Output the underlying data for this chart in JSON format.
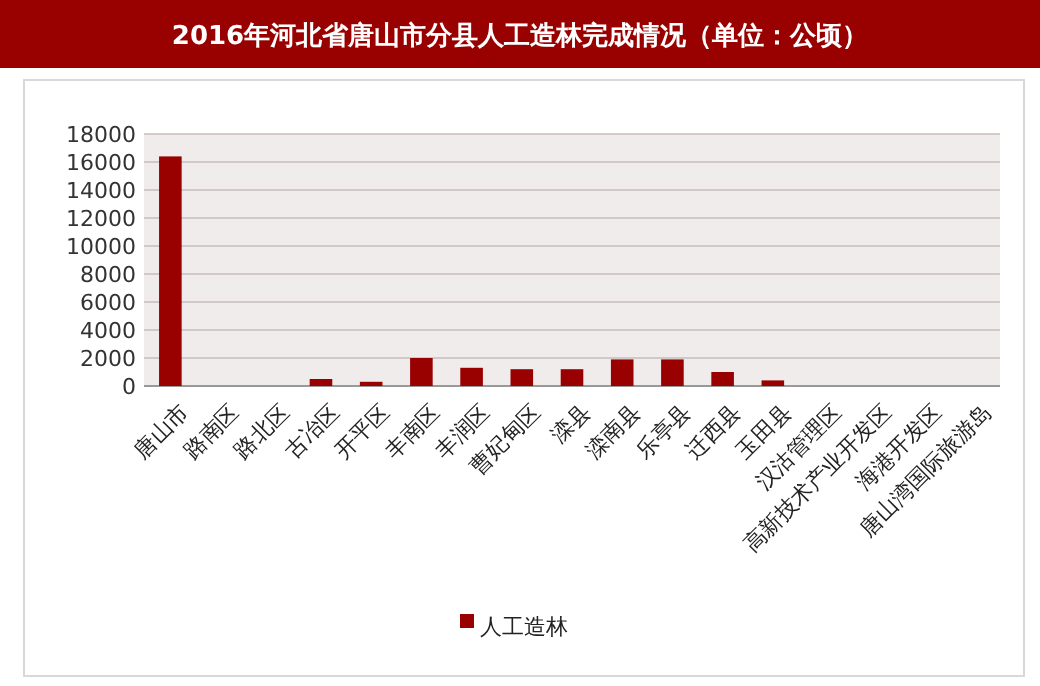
{
  "chart_data": {
    "type": "bar",
    "title": "2016年河北省唐山市分县人工造林完成情况（单位：公顷）",
    "categories": [
      "唐山市",
      "路南区",
      "路北区",
      "古冶区",
      "开平区",
      "丰南区",
      "丰润区",
      "曹妃甸区",
      "滦县",
      "滦南县",
      "乐亭县",
      "迁西县",
      "玉田县",
      "汉沽管理区",
      "高新技术产业开发区",
      "海港开发区",
      "唐山湾国际旅游岛"
    ],
    "series": [
      {
        "name": "人工造林",
        "color": "#990000",
        "values": [
          16400,
          0,
          0,
          500,
          300,
          2000,
          1300,
          1200,
          1200,
          1900,
          1900,
          1000,
          400,
          0,
          0,
          0,
          0
        ]
      }
    ],
    "ylim": [
      0,
      18000
    ],
    "yticks": [
      0,
      2000,
      4000,
      6000,
      8000,
      10000,
      12000,
      14000,
      16000,
      18000
    ],
    "grid": "y",
    "legend": "bottom"
  }
}
